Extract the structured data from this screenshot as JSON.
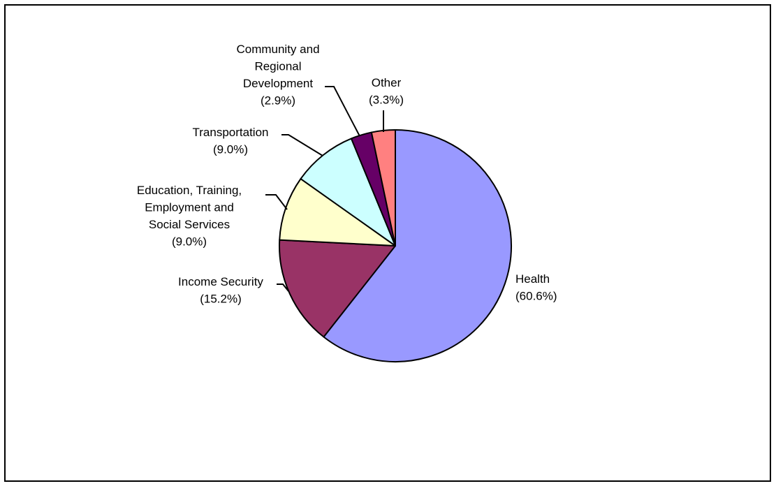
{
  "chart_data": {
    "type": "pie",
    "title": "",
    "slices": [
      {
        "name": "Health",
        "value": 60.6,
        "label_lines": [
          "Health",
          "(60.6%)"
        ],
        "color": "#9999FF"
      },
      {
        "name": "Income Security",
        "value": 15.2,
        "label_lines": [
          "Income Security",
          "(15.2%)"
        ],
        "color": "#993366"
      },
      {
        "name": "Education, Training, Employment and Social Services",
        "value": 9.0,
        "label_lines": [
          "Education, Training,",
          "Employment and",
          "Social Services",
          "(9.0%)"
        ],
        "color": "#FFFFCC"
      },
      {
        "name": "Transportation",
        "value": 9.0,
        "label_lines": [
          "Transportation",
          "(9.0%)"
        ],
        "color": "#CCFFFF"
      },
      {
        "name": "Community and Regional Development",
        "value": 2.9,
        "label_lines": [
          "Community and",
          "Regional",
          "Development",
          "(2.9%)"
        ],
        "color": "#660066"
      },
      {
        "name": "Other",
        "value": 3.3,
        "label_lines": [
          "Other",
          "(3.3%)"
        ],
        "color": "#FF8080"
      }
    ],
    "start": "12 o'clock",
    "direction": "clockwise",
    "legend": "none"
  }
}
